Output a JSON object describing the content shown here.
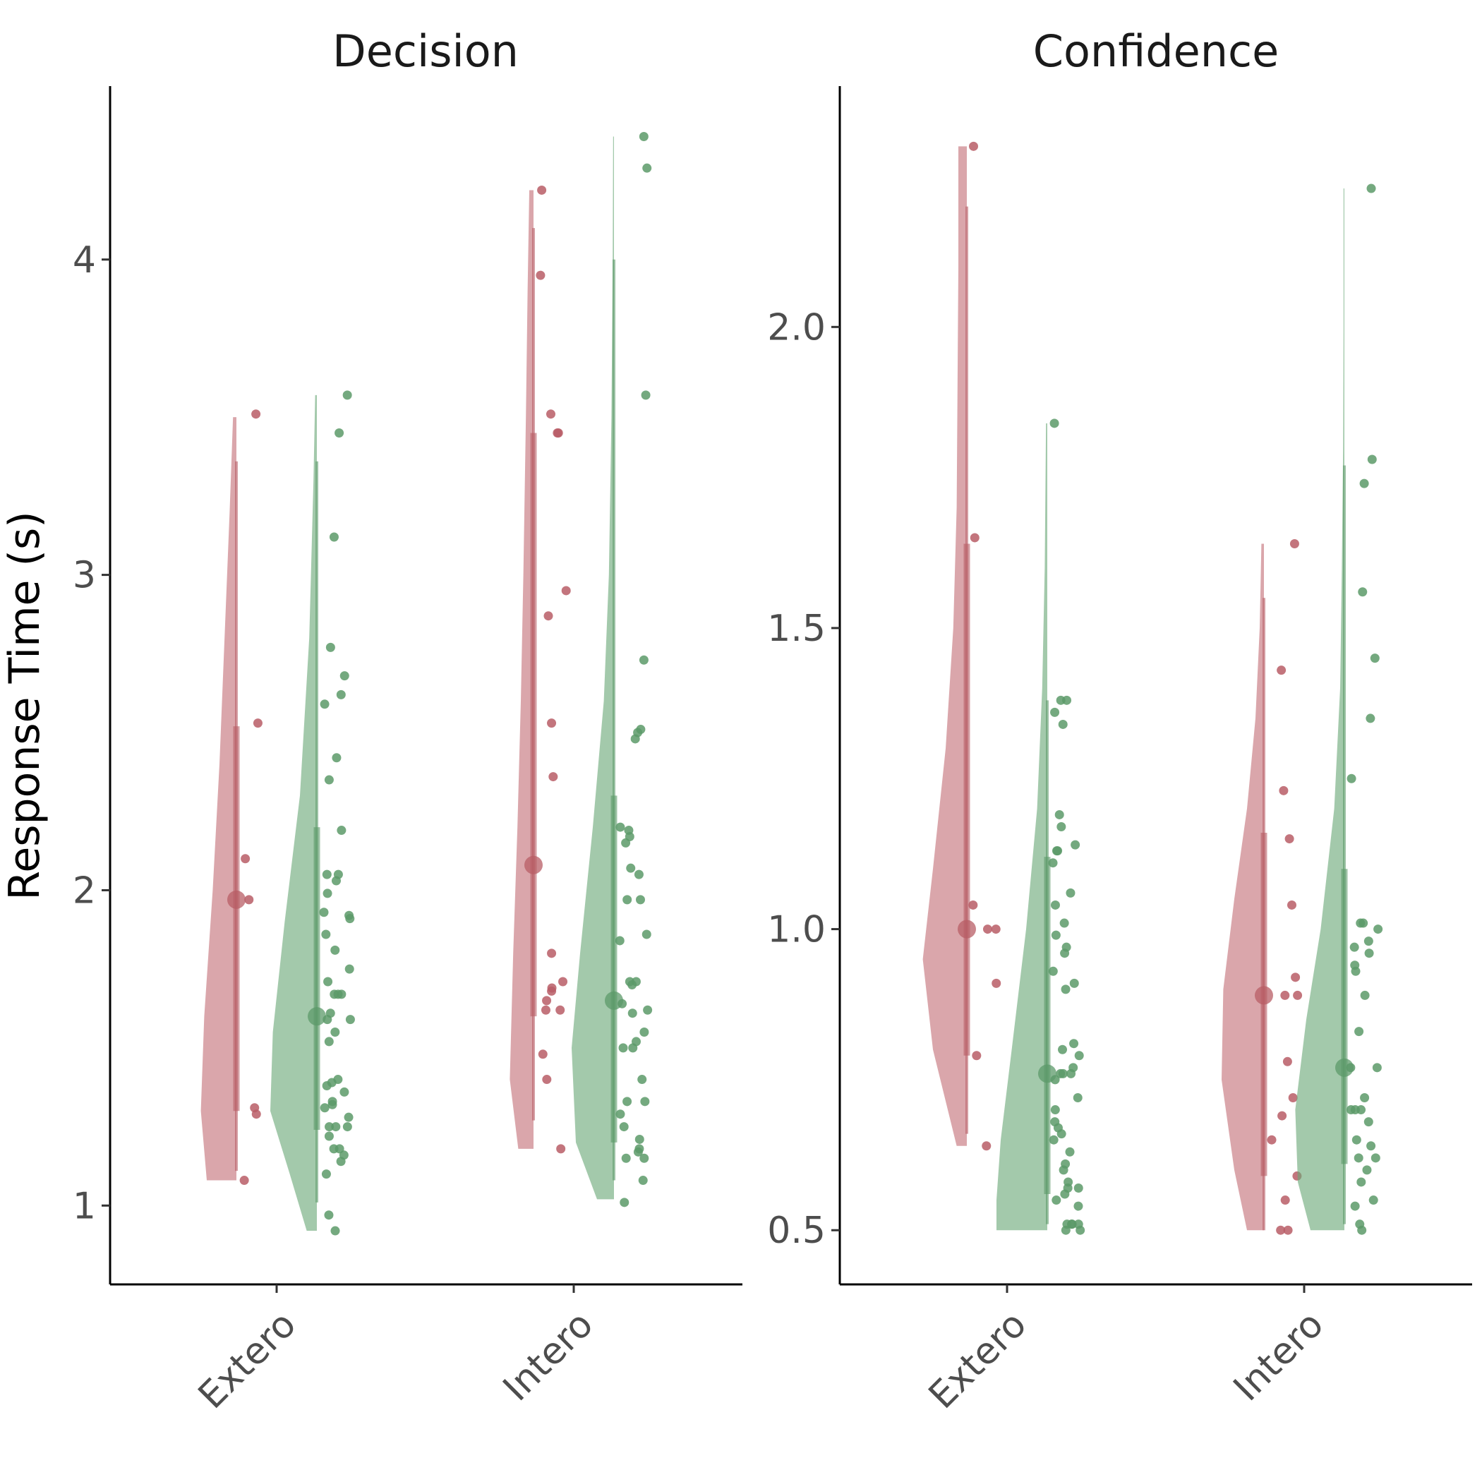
{
  "chart_data": {
    "type": "raincloud",
    "ylabel": "Response Time (s)",
    "xlabel": "",
    "categories": [
      "Extero",
      "Intero"
    ],
    "grid": false,
    "legend": "none",
    "colors": {
      "red": "#c47078",
      "green": "#6aa877",
      "red_dark": "#b85d66",
      "green_dark": "#5c9a69"
    },
    "panels": [
      {
        "title": "Decision",
        "ylim": [
          0.75,
          4.55
        ],
        "yticks": [
          1,
          2,
          3,
          4
        ],
        "ytick_labels": [
          "1",
          "2",
          "3",
          "4"
        ],
        "groups": [
          {
            "category": "Extero",
            "series": [
              {
                "name": "",
                "color": "red",
                "mean": 1.97,
                "interval_inner": [
                  1.3,
                  2.52
                ],
                "interval_outer": [
                  1.11,
                  3.36
                ],
                "violin": {
                  "y": [
                    1.08,
                    1.3,
                    1.6,
                    2.0,
                    2.4,
                    2.8,
                    3.2,
                    3.5
                  ],
                  "w": [
                    0.35,
                    0.42,
                    0.38,
                    0.28,
                    0.2,
                    0.14,
                    0.08,
                    0.04
                  ]
                },
                "points": [
                  3.51,
                  2.53,
                  2.1,
                  1.97,
                  1.31,
                  1.29,
                  1.08
                ]
              },
              {
                "name": "",
                "color": "green",
                "mean": 1.6,
                "interval_inner": [
                  1.24,
                  2.2
                ],
                "interval_outer": [
                  1.01,
                  3.36
                ],
                "violin": {
                  "y": [
                    0.92,
                    1.1,
                    1.3,
                    1.55,
                    1.9,
                    2.3,
                    2.8,
                    3.3,
                    3.57
                  ],
                  "w": [
                    0.12,
                    0.32,
                    0.55,
                    0.52,
                    0.38,
                    0.2,
                    0.09,
                    0.04,
                    0.02
                  ]
                },
                "points": [
                  3.57,
                  3.45,
                  3.12,
                  2.77,
                  2.68,
                  2.62,
                  2.59,
                  2.42,
                  2.35,
                  2.19,
                  2.05,
                  2.05,
                  2.03,
                  1.99,
                  1.93,
                  1.92,
                  1.91,
                  1.86,
                  1.81,
                  1.75,
                  1.71,
                  1.67,
                  1.67,
                  1.67,
                  1.61,
                  1.59,
                  1.59,
                  1.55,
                  1.52,
                  1.4,
                  1.39,
                  1.38,
                  1.36,
                  1.33,
                  1.32,
                  1.31,
                  1.28,
                  1.25,
                  1.25,
                  1.25,
                  1.22,
                  1.18,
                  1.18,
                  1.16,
                  1.14,
                  1.1,
                  0.97,
                  0.92
                ]
              }
            ]
          },
          {
            "category": "Intero",
            "series": [
              {
                "name": "",
                "color": "red",
                "mean": 2.08,
                "interval_inner": [
                  1.6,
                  3.45
                ],
                "interval_outer": [
                  1.27,
                  4.1
                ],
                "violin": {
                  "y": [
                    1.18,
                    1.4,
                    1.8,
                    2.2,
                    2.6,
                    3.0,
                    3.5,
                    3.9,
                    4.22
                  ],
                  "w": [
                    0.18,
                    0.28,
                    0.24,
                    0.19,
                    0.15,
                    0.12,
                    0.09,
                    0.07,
                    0.05
                  ]
                },
                "points": [
                  4.22,
                  3.95,
                  3.51,
                  3.45,
                  3.45,
                  2.95,
                  2.87,
                  2.53,
                  2.36,
                  1.8,
                  1.71,
                  1.69,
                  1.68,
                  1.65,
                  1.62,
                  1.62,
                  1.48,
                  1.4,
                  1.18
                ]
              },
              {
                "name": "",
                "color": "green",
                "mean": 1.65,
                "interval_inner": [
                  1.2,
                  2.3
                ],
                "interval_outer": [
                  1.08,
                  4.0
                ],
                "violin": {
                  "y": [
                    1.02,
                    1.2,
                    1.5,
                    1.8,
                    2.2,
                    2.6,
                    3.0,
                    3.5,
                    4.0,
                    4.39
                  ],
                  "w": [
                    0.2,
                    0.45,
                    0.5,
                    0.4,
                    0.25,
                    0.12,
                    0.06,
                    0.03,
                    0.015,
                    0.01
                  ]
                },
                "points": [
                  4.39,
                  4.29,
                  3.57,
                  2.73,
                  2.51,
                  2.5,
                  2.48,
                  2.2,
                  2.19,
                  2.17,
                  2.15,
                  2.07,
                  2.05,
                  1.97,
                  1.97,
                  1.86,
                  1.84,
                  1.71,
                  1.71,
                  1.7,
                  1.64,
                  1.62,
                  1.61,
                  1.55,
                  1.52,
                  1.5,
                  1.5,
                  1.4,
                  1.33,
                  1.33,
                  1.29,
                  1.25,
                  1.21,
                  1.18,
                  1.17,
                  1.15,
                  1.15,
                  1.08,
                  1.01
                ]
              }
            ]
          }
        ]
      },
      {
        "title": "Confidence",
        "ylim": [
          0.41,
          2.4
        ],
        "yticks": [
          0.5,
          1.0,
          1.5,
          2.0
        ],
        "ytick_labels": [
          "0.5",
          "1.0",
          "1.5",
          "2.0"
        ],
        "groups": [
          {
            "category": "Extero",
            "series": [
              {
                "name": "",
                "color": "red",
                "mean": 1.0,
                "interval_inner": [
                  0.79,
                  1.64
                ],
                "interval_outer": [
                  0.66,
                  2.2
                ],
                "violin": {
                  "y": [
                    0.64,
                    0.8,
                    0.95,
                    1.1,
                    1.3,
                    1.5,
                    1.7,
                    1.9,
                    2.1,
                    2.3
                  ],
                  "w": [
                    0.12,
                    0.4,
                    0.52,
                    0.4,
                    0.25,
                    0.16,
                    0.12,
                    0.11,
                    0.1,
                    0.1
                  ]
                },
                "points": [
                  2.3,
                  1.65,
                  1.04,
                  1.0,
                  1.0,
                  0.91,
                  0.79,
                  0.64
                ]
              },
              {
                "name": "",
                "color": "green",
                "mean": 0.76,
                "interval_inner": [
                  0.56,
                  1.12
                ],
                "interval_outer": [
                  0.51,
                  1.38
                ],
                "violin": {
                  "y": [
                    0.5,
                    0.55,
                    0.65,
                    0.8,
                    1.0,
                    1.2,
                    1.4,
                    1.6,
                    1.84
                  ],
                  "w": [
                    0.6,
                    0.6,
                    0.55,
                    0.42,
                    0.25,
                    0.12,
                    0.06,
                    0.03,
                    0.015
                  ]
                },
                "points": [
                  1.84,
                  1.38,
                  1.38,
                  1.36,
                  1.34,
                  1.19,
                  1.17,
                  1.14,
                  1.13,
                  1.13,
                  1.11,
                  1.06,
                  1.04,
                  1.01,
                  0.99,
                  0.97,
                  0.96,
                  0.93,
                  0.91,
                  0.9,
                  0.81,
                  0.8,
                  0.79,
                  0.77,
                  0.76,
                  0.76,
                  0.76,
                  0.75,
                  0.72,
                  0.7,
                  0.68,
                  0.67,
                  0.66,
                  0.65,
                  0.63,
                  0.61,
                  0.6,
                  0.58,
                  0.57,
                  0.57,
                  0.56,
                  0.55,
                  0.54,
                  0.51,
                  0.51,
                  0.51,
                  0.51,
                  0.5,
                  0.5
                ]
              }
            ]
          },
          {
            "category": "Intero",
            "series": [
              {
                "name": "",
                "color": "red",
                "mean": 0.89,
                "interval_inner": [
                  0.59,
                  1.16
                ],
                "interval_outer": [
                  0.5,
                  1.55
                ],
                "violin": {
                  "y": [
                    0.5,
                    0.6,
                    0.75,
                    0.9,
                    1.05,
                    1.2,
                    1.35,
                    1.5,
                    1.64
                  ],
                  "w": [
                    0.2,
                    0.35,
                    0.5,
                    0.48,
                    0.35,
                    0.2,
                    0.1,
                    0.05,
                    0.03
                  ]
                },
                "points": [
                  1.64,
                  1.43,
                  1.23,
                  1.15,
                  1.04,
                  0.92,
                  0.89,
                  0.89,
                  0.78,
                  0.72,
                  0.69,
                  0.65,
                  0.59,
                  0.55,
                  0.5,
                  0.5
                ]
              },
              {
                "name": "",
                "color": "green",
                "mean": 0.77,
                "interval_inner": [
                  0.61,
                  1.1
                ],
                "interval_outer": [
                  0.51,
                  1.77
                ],
                "violin": {
                  "y": [
                    0.5,
                    0.58,
                    0.7,
                    0.85,
                    1.0,
                    1.2,
                    1.4,
                    1.6,
                    1.8,
                    2.0,
                    2.23
                  ],
                  "w": [
                    0.4,
                    0.55,
                    0.58,
                    0.45,
                    0.28,
                    0.12,
                    0.05,
                    0.03,
                    0.015,
                    0.01,
                    0.01
                  ]
                },
                "points": [
                  2.23,
                  1.78,
                  1.74,
                  1.56,
                  1.45,
                  1.35,
                  1.25,
                  1.01,
                  1.01,
                  1.0,
                  0.98,
                  0.97,
                  0.96,
                  0.94,
                  0.93,
                  0.89,
                  0.83,
                  0.77,
                  0.77,
                  0.72,
                  0.7,
                  0.7,
                  0.7,
                  0.68,
                  0.65,
                  0.64,
                  0.62,
                  0.62,
                  0.6,
                  0.58,
                  0.55,
                  0.54,
                  0.51,
                  0.5
                ]
              }
            ]
          }
        ]
      }
    ]
  }
}
